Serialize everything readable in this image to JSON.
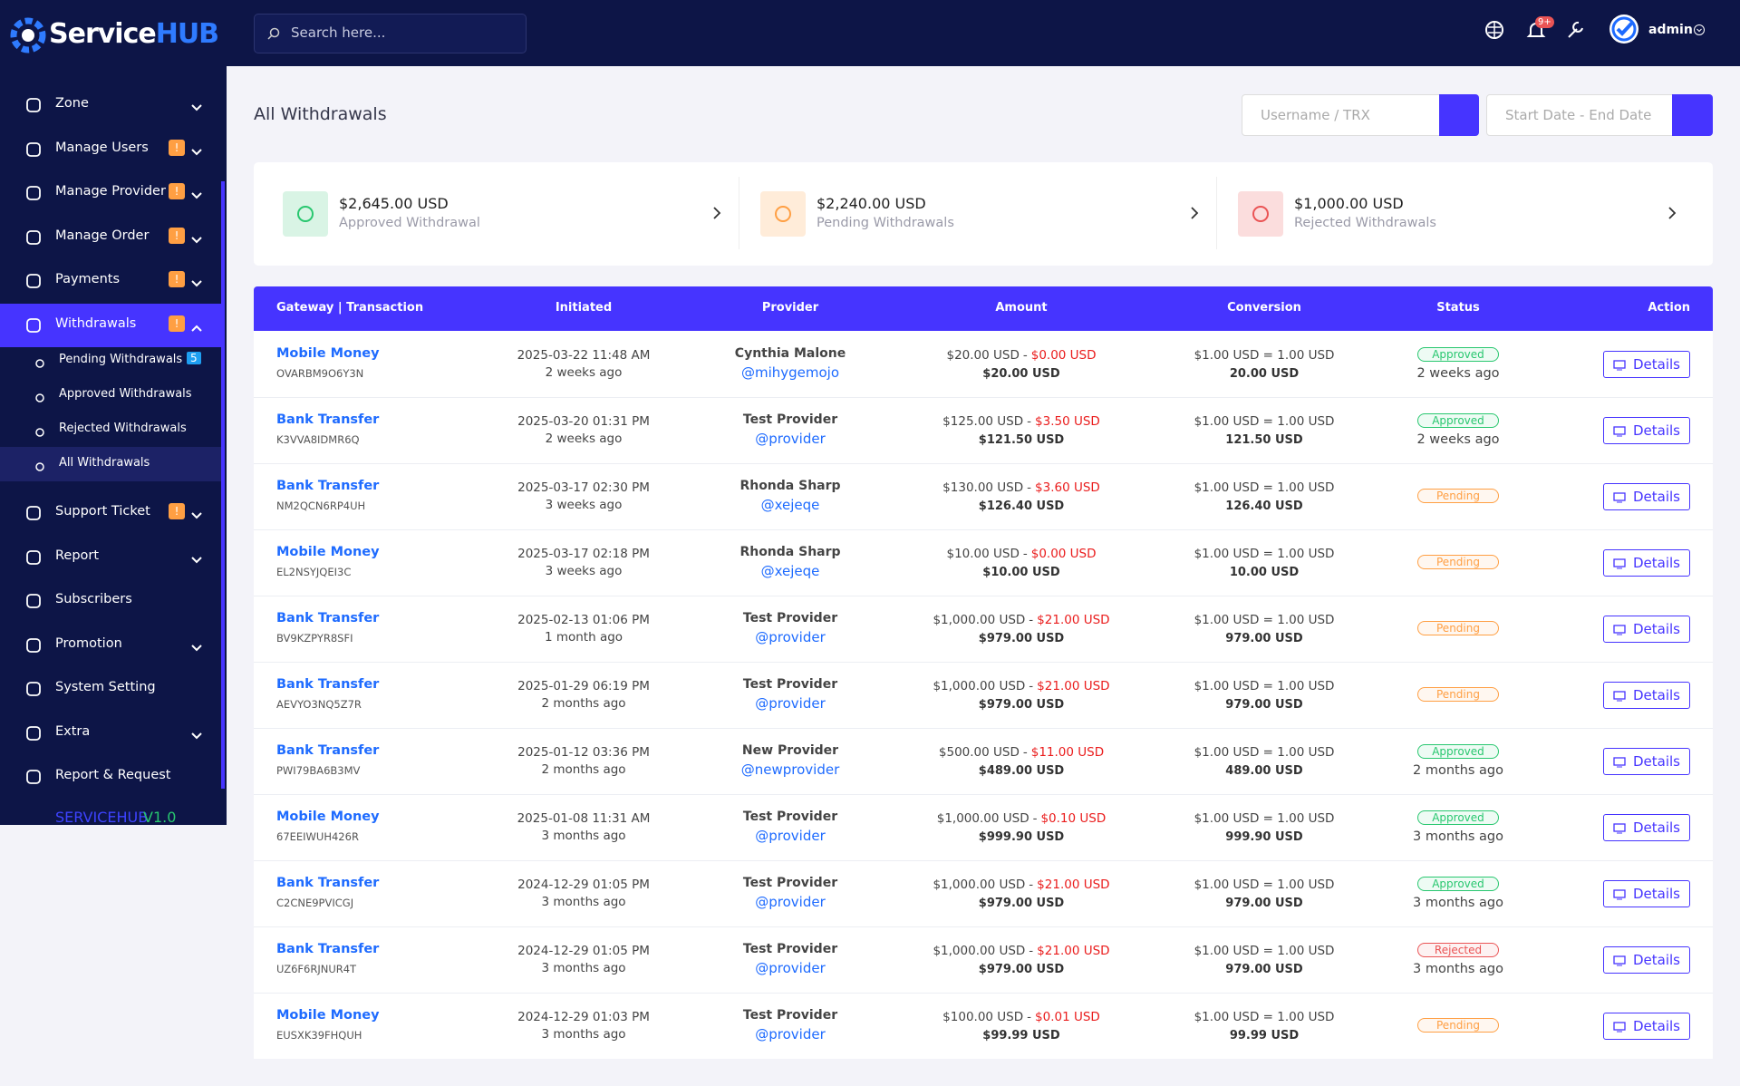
{
  "header": {
    "logo_main": "Service",
    "logo_accent": "HUB",
    "search_placeholder": "Search here...",
    "notification_badge": "9+",
    "user": "admin"
  },
  "sidebar": {
    "items": [
      {
        "label": "Zone",
        "arrow": true
      },
      {
        "label": "Manage Users",
        "badge": "!",
        "arrow": true
      },
      {
        "label": "Manage Provider",
        "badge": "!",
        "arrow": true
      },
      {
        "label": "Manage Order",
        "badge": "!",
        "arrow": true
      },
      {
        "label": "Payments",
        "badge": "!",
        "arrow": true
      },
      {
        "label": "Withdrawals",
        "badge": "!",
        "arrow": true,
        "open": true,
        "children": [
          {
            "label": "Pending Withdrawals",
            "count": "5"
          },
          {
            "label": "Approved Withdrawals"
          },
          {
            "label": "Rejected Withdrawals"
          },
          {
            "label": "All Withdrawals",
            "active": true
          }
        ]
      },
      {
        "label": "Support Ticket",
        "badge": "!",
        "arrow": true
      },
      {
        "label": "Report",
        "arrow": true
      },
      {
        "label": "Subscribers"
      },
      {
        "label": "Promotion",
        "arrow": true
      },
      {
        "label": "System Setting"
      },
      {
        "label": "Extra",
        "arrow": true
      },
      {
        "label": "Report & Request"
      }
    ],
    "footer_name": "SERVICEHUB",
    "footer_version": "V1.0"
  },
  "page": {
    "title": "All Withdrawals",
    "filter_placeholder": "Username / TRX",
    "date_placeholder": "Start Date - End Date"
  },
  "stats": [
    {
      "amount": "$2,645.00 USD",
      "label": "Approved Withdrawal",
      "color": "#28c76f",
      "bg": "#d9f4e5"
    },
    {
      "amount": "$2,240.00 USD",
      "label": "Pending Withdrawals",
      "color": "#ff9f43",
      "bg": "#ffecd9"
    },
    {
      "amount": "$1,000.00 USD",
      "label": "Rejected Withdrawals",
      "color": "#ea5455",
      "bg": "#fbdddd"
    }
  ],
  "table": {
    "columns": [
      "Gateway | Transaction",
      "Initiated",
      "Provider",
      "Amount",
      "Conversion",
      "Status",
      "Action"
    ],
    "charge_separator": "-",
    "action": "Details",
    "rows": [
      {
        "gateway": "Mobile Money",
        "trx": "OVARBM9O6Y3N",
        "date": "2025-03-22 11:48 AM",
        "ago": "2 weeks ago",
        "provider": "Cynthia Malone",
        "username": "@mihygemojo",
        "amount": "$20.00 USD",
        "charge": "$0.00 USD",
        "net": "$20.00 USD",
        "conversion": "$1.00 USD = 1.00 USD",
        "converted": "20.00 USD",
        "status": "Approved",
        "status_color": "#28c76f",
        "status_time": "2 weeks ago"
      },
      {
        "gateway": "Bank Transfer",
        "trx": "K3VVA8IDMR6Q",
        "date": "2025-03-20 01:31 PM",
        "ago": "2 weeks ago",
        "provider": "Test Provider",
        "username": "@provider",
        "amount": "$125.00 USD",
        "charge": "$3.50 USD",
        "net": "$121.50 USD",
        "conversion": "$1.00 USD = 1.00 USD",
        "converted": "121.50 USD",
        "status": "Approved",
        "status_color": "#28c76f",
        "status_time": "2 weeks ago"
      },
      {
        "gateway": "Bank Transfer",
        "trx": "NM2QCN6RP4UH",
        "date": "2025-03-17 02:30 PM",
        "ago": "3 weeks ago",
        "provider": "Rhonda Sharp",
        "username": "@xejeqe",
        "amount": "$130.00 USD",
        "charge": "$3.60 USD",
        "net": "$126.40 USD",
        "conversion": "$1.00 USD = 1.00 USD",
        "converted": "126.40 USD",
        "status": "Pending",
        "status_color": "#ff9f43"
      },
      {
        "gateway": "Mobile Money",
        "trx": "EL2NSYJQEI3C",
        "date": "2025-03-17 02:18 PM",
        "ago": "3 weeks ago",
        "provider": "Rhonda Sharp",
        "username": "@xejeqe",
        "amount": "$10.00 USD",
        "charge": "$0.00 USD",
        "net": "$10.00 USD",
        "conversion": "$1.00 USD = 1.00 USD",
        "converted": "10.00 USD",
        "status": "Pending",
        "status_color": "#ff9f43"
      },
      {
        "gateway": "Bank Transfer",
        "trx": "BV9KZPYR8SFI",
        "date": "2025-02-13 01:06 PM",
        "ago": "1 month ago",
        "provider": "Test Provider",
        "username": "@provider",
        "amount": "$1,000.00 USD",
        "charge": "$21.00 USD",
        "net": "$979.00 USD",
        "conversion": "$1.00 USD = 1.00 USD",
        "converted": "979.00 USD",
        "status": "Pending",
        "status_color": "#ff9f43"
      },
      {
        "gateway": "Bank Transfer",
        "trx": "AEVYO3NQ5Z7R",
        "date": "2025-01-29 06:19 PM",
        "ago": "2 months ago",
        "provider": "Test Provider",
        "username": "@provider",
        "amount": "$1,000.00 USD",
        "charge": "$21.00 USD",
        "net": "$979.00 USD",
        "conversion": "$1.00 USD = 1.00 USD",
        "converted": "979.00 USD",
        "status": "Pending",
        "status_color": "#ff9f43"
      },
      {
        "gateway": "Bank Transfer",
        "trx": "PWI79BA6B3MV",
        "date": "2025-01-12 03:36 PM",
        "ago": "2 months ago",
        "provider": "New Provider",
        "username": "@newprovider",
        "amount": "$500.00 USD",
        "charge": "$11.00 USD",
        "net": "$489.00 USD",
        "conversion": "$1.00 USD = 1.00 USD",
        "converted": "489.00 USD",
        "status": "Approved",
        "status_color": "#28c76f",
        "status_time": "2 months ago"
      },
      {
        "gateway": "Mobile Money",
        "trx": "67EEIWUH426R",
        "date": "2025-01-08 11:31 AM",
        "ago": "3 months ago",
        "provider": "Test Provider",
        "username": "@provider",
        "amount": "$1,000.00 USD",
        "charge": "$0.10 USD",
        "net": "$999.90 USD",
        "conversion": "$1.00 USD = 1.00 USD",
        "converted": "999.90 USD",
        "status": "Approved",
        "status_color": "#28c76f",
        "status_time": "3 months ago"
      },
      {
        "gateway": "Bank Transfer",
        "trx": "C2CNE9PVICGJ",
        "date": "2024-12-29 01:05 PM",
        "ago": "3 months ago",
        "provider": "Test Provider",
        "username": "@provider",
        "amount": "$1,000.00 USD",
        "charge": "$21.00 USD",
        "net": "$979.00 USD",
        "conversion": "$1.00 USD = 1.00 USD",
        "converted": "979.00 USD",
        "status": "Approved",
        "status_color": "#28c76f",
        "status_time": "3 months ago"
      },
      {
        "gateway": "Bank Transfer",
        "trx": "UZ6F6RJNUR4T",
        "date": "2024-12-29 01:05 PM",
        "ago": "3 months ago",
        "provider": "Test Provider",
        "username": "@provider",
        "amount": "$1,000.00 USD",
        "charge": "$21.00 USD",
        "net": "$979.00 USD",
        "conversion": "$1.00 USD = 1.00 USD",
        "converted": "979.00 USD",
        "status": "Rejected",
        "status_color": "#ea5455",
        "status_time": "3 months ago"
      },
      {
        "gateway": "Mobile Money",
        "trx": "EUSXK39FHQUH",
        "date": "2024-12-29 01:03 PM",
        "ago": "3 months ago",
        "provider": "Test Provider",
        "username": "@provider",
        "amount": "$100.00 USD",
        "charge": "$0.01 USD",
        "net": "$99.99 USD",
        "conversion": "$1.00 USD = 1.00 USD",
        "converted": "99.99 USD",
        "status": "Pending",
        "status_color": "#ff9f43"
      }
    ]
  }
}
